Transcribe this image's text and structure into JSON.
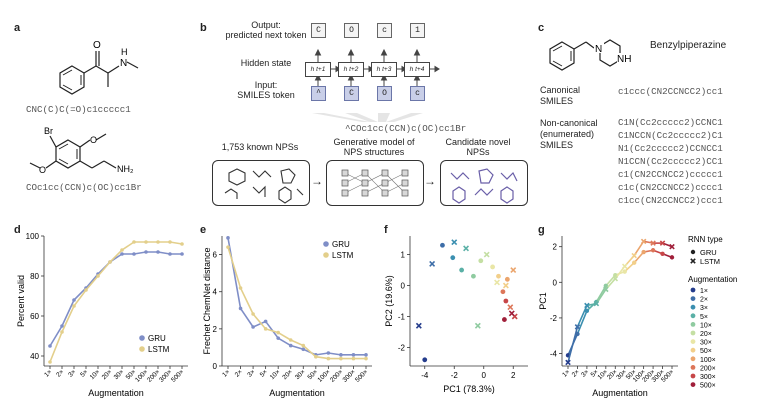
{
  "panels": {
    "a": "a",
    "b": "b",
    "c": "c",
    "d": "d",
    "e": "e",
    "f": "f",
    "g": "g"
  },
  "panel_a": {
    "mol1_atom_o": "O",
    "mol1_atom_n": "N",
    "mol1_atom_h": "H",
    "smiles1": "CNC(C)C(=O)c1ccccc1",
    "mol2_atom_br": "Br",
    "mol2_atom_o1": "O",
    "mol2_atom_o2": "O",
    "mol2_atom_nh2": "NH₂",
    "smiles2": "COc1cc(CCN)c(OC)cc1Br"
  },
  "panel_b": {
    "output_label": "Output:\npredicted next token",
    "hidden_label": "Hidden state",
    "input_label": "Input:\nSMILES token",
    "output_tokens": [
      "C",
      "O",
      "c",
      "1"
    ],
    "hidden_states": [
      "h t+1",
      "h t+2",
      "h t+3",
      "h t+4"
    ],
    "input_tokens": [
      "^",
      "C",
      "O",
      "c"
    ],
    "sequence": "^COc1cc(CCN)c(OC)cc1Br",
    "box1_caption": "1,753 known NPSs",
    "box2_caption": "Generative model of\nNPS structures",
    "box3_caption": "Candidate novel\nNPSs"
  },
  "panel_c": {
    "molecule_name": "Benzylpiperazine",
    "atom_n1": "N",
    "atom_nh": "NH",
    "canonical_label": "Canonical\nSMILES",
    "canonical_smiles": "c1ccc(CN2CCNCC2)cc1",
    "noncanonical_label": "Non-canonical\n(enumerated)\nSMILES",
    "noncanonical_smiles": [
      "C1N(Cc2ccccc2)CCNC1",
      "C1NCCN(Cc2ccccc2)C1",
      "N1(Cc2ccccc2)CCNCC1",
      "N1CCN(Cc2ccccc2)CC1",
      "c1(CN2CCNCC2)ccccc1",
      "c1c(CN2CCNCC2)cccc1",
      "c1cc(CN2CCNCC2)ccc1"
    ]
  },
  "augment_levels": [
    "1×",
    "2×",
    "3×",
    "5×",
    "10×",
    "20×",
    "30×",
    "50×",
    "100×",
    "200×",
    "300×",
    "500×"
  ],
  "colors": {
    "gru": "#7f8ec7",
    "lstm": "#e3cf8b",
    "augment_scale": [
      "#243c8c",
      "#3e6ea8",
      "#3b8fb0",
      "#5ab0a6",
      "#8fcba0",
      "#c4dfa3",
      "#e9e6a6",
      "#f2cf8a",
      "#eba56d",
      "#dd7659",
      "#c74648",
      "#a01f3a"
    ]
  },
  "chart_data": [
    {
      "type": "line",
      "xlabel": "Augmentation",
      "ylabel": "Percent valid",
      "categories": [
        "1×",
        "2×",
        "3×",
        "5×",
        "10×",
        "20×",
        "30×",
        "50×",
        "100×",
        "200×",
        "300×",
        "500×"
      ],
      "ylim": [
        35,
        100
      ],
      "yticks": [
        40,
        60,
        80,
        100
      ],
      "legend": "bottom-right",
      "series": [
        {
          "name": "GRU",
          "values": [
            45,
            55,
            68,
            74,
            81,
            87,
            91,
            91,
            92,
            92,
            91,
            91
          ]
        },
        {
          "name": "LSTM",
          "values": [
            37,
            52,
            65,
            73,
            80,
            87,
            93,
            97,
            97,
            97,
            97,
            96
          ]
        }
      ]
    },
    {
      "type": "line",
      "xlabel": "Augmentation",
      "ylabel": "Frechet ChemNet distance",
      "categories": [
        "1×",
        "2×",
        "3×",
        "5×",
        "10×",
        "20×",
        "30×",
        "50×",
        "100×",
        "200×",
        "300×",
        "500×"
      ],
      "ylim": [
        0,
        7
      ],
      "yticks": [
        0,
        2,
        4,
        6
      ],
      "legend": "top-right",
      "series": [
        {
          "name": "GRU",
          "values": [
            6.9,
            3.1,
            2.1,
            2.4,
            1.5,
            1.1,
            0.9,
            0.6,
            0.7,
            0.6,
            0.6,
            0.6
          ]
        },
        {
          "name": "LSTM",
          "values": [
            6.4,
            4.2,
            2.8,
            2.0,
            1.8,
            1.4,
            1.1,
            0.5,
            0.4,
            0.4,
            0.4,
            0.4
          ]
        }
      ]
    },
    {
      "type": "scatter",
      "xlabel": "PC1 (78.3%)",
      "ylabel": "PC2 (19.6%)",
      "xlim": [
        -5,
        3
      ],
      "ylim": [
        -2.6,
        1.6
      ],
      "xticks": [
        -4,
        -2,
        0,
        2
      ],
      "yticks": [
        -2,
        -1,
        0,
        1
      ],
      "points": [
        {
          "x": -4.4,
          "y": -1.3,
          "model": "LSTM",
          "aug": 0
        },
        {
          "x": -4.0,
          "y": -2.4,
          "model": "GRU",
          "aug": 0
        },
        {
          "x": -3.5,
          "y": 0.7,
          "model": "LSTM",
          "aug": 1
        },
        {
          "x": -2.8,
          "y": 1.3,
          "model": "GRU",
          "aug": 1
        },
        {
          "x": -2.0,
          "y": 1.4,
          "model": "LSTM",
          "aug": 2
        },
        {
          "x": -2.1,
          "y": 0.9,
          "model": "GRU",
          "aug": 2
        },
        {
          "x": -1.2,
          "y": 1.2,
          "model": "LSTM",
          "aug": 3
        },
        {
          "x": -1.5,
          "y": 0.5,
          "model": "GRU",
          "aug": 3
        },
        {
          "x": -0.7,
          "y": 0.3,
          "model": "GRU",
          "aug": 4
        },
        {
          "x": -0.4,
          "y": -1.3,
          "model": "LSTM",
          "aug": 4
        },
        {
          "x": -0.2,
          "y": 0.8,
          "model": "GRU",
          "aug": 5
        },
        {
          "x": 0.2,
          "y": 1.0,
          "model": "LSTM",
          "aug": 5
        },
        {
          "x": 0.6,
          "y": 0.6,
          "model": "GRU",
          "aug": 6
        },
        {
          "x": 0.9,
          "y": 0.1,
          "model": "LSTM",
          "aug": 6
        },
        {
          "x": 1.0,
          "y": 0.3,
          "model": "GRU",
          "aug": 7
        },
        {
          "x": 1.5,
          "y": 0.0,
          "model": "LSTM",
          "aug": 7
        },
        {
          "x": 1.6,
          "y": 0.2,
          "model": "GRU",
          "aug": 8
        },
        {
          "x": 2.0,
          "y": 0.5,
          "model": "LSTM",
          "aug": 8
        },
        {
          "x": 1.3,
          "y": -0.2,
          "model": "GRU",
          "aug": 9
        },
        {
          "x": 1.8,
          "y": -0.7,
          "model": "LSTM",
          "aug": 9
        },
        {
          "x": 1.5,
          "y": -0.5,
          "model": "GRU",
          "aug": 10
        },
        {
          "x": 2.1,
          "y": -1.0,
          "model": "LSTM",
          "aug": 10
        },
        {
          "x": 1.4,
          "y": -1.1,
          "model": "GRU",
          "aug": 11
        },
        {
          "x": 1.9,
          "y": -0.9,
          "model": "LSTM",
          "aug": 11
        }
      ]
    },
    {
      "type": "line",
      "xlabel": "Augmentation",
      "ylabel": "PC1",
      "categories": [
        "1×",
        "2×",
        "3×",
        "5×",
        "10×",
        "20×",
        "30×",
        "50×",
        "100×",
        "200×",
        "300×",
        "500×"
      ],
      "ylim": [
        -4.7,
        2.6
      ],
      "yticks": [
        -4,
        -2,
        0,
        2
      ],
      "series": [
        {
          "name": "GRU",
          "values": [
            -4.1,
            -2.9,
            -1.6,
            -1.1,
            -0.2,
            0.4,
            0.6,
            1.1,
            1.7,
            1.8,
            1.6,
            1.4
          ]
        },
        {
          "name": "LSTM",
          "values": [
            -4.5,
            -2.5,
            -1.3,
            -1.2,
            -0.4,
            0.2,
            0.9,
            1.5,
            2.3,
            2.2,
            2.2,
            2.0
          ]
        }
      ],
      "legend": {
        "rnn_title": "RNN type",
        "rnn_items": [
          "GRU",
          "LSTM"
        ],
        "aug_title": "Augmentation",
        "aug_items": [
          "1×",
          "2×",
          "3×",
          "5×",
          "10×",
          "20×",
          "30×",
          "50×",
          "100×",
          "200×",
          "300×",
          "500×"
        ]
      }
    }
  ]
}
